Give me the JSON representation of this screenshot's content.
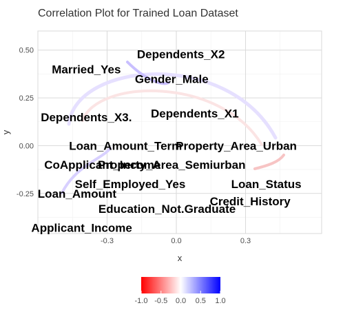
{
  "chart_data": {
    "type": "scatter",
    "title": "Correlation Plot for Trained Loan Dataset",
    "xlabel": "x",
    "ylabel": "y",
    "xlim": [
      -0.6,
      0.63
    ],
    "ylim": [
      -0.46,
      0.6
    ],
    "x_ticks": [
      -0.3,
      0.0,
      0.3
    ],
    "x_tick_labels": [
      "-0.3",
      "0.0",
      "0.3"
    ],
    "y_ticks": [
      0.5,
      0.25,
      0.0,
      -0.25
    ],
    "y_tick_labels": [
      "0.50",
      "0.25",
      "0.00",
      "-0.25"
    ],
    "grid": true,
    "points": [
      {
        "label": "Dependents_X2",
        "x": 0.02,
        "y": 0.48
      },
      {
        "label": "Married_Yes",
        "x": -0.39,
        "y": 0.4
      },
      {
        "label": "Gender_Male",
        "x": -0.02,
        "y": 0.35
      },
      {
        "label": "Dependents_X3.",
        "x": -0.39,
        "y": 0.15
      },
      {
        "label": "Dependents_X1",
        "x": 0.08,
        "y": 0.17
      },
      {
        "label": "Loan_Amount_Term",
        "x": -0.22,
        "y": 0.0
      },
      {
        "label": "Property_Area_Urban",
        "x": 0.26,
        "y": 0.0
      },
      {
        "label": "CoApplicant_Income",
        "x": -0.32,
        "y": -0.1
      },
      {
        "label": "Property_Area_Semiurban",
        "x": -0.02,
        "y": -0.1
      },
      {
        "label": "Self_Employed_Yes",
        "x": -0.2,
        "y": -0.2
      },
      {
        "label": "Loan_Status",
        "x": 0.39,
        "y": -0.2
      },
      {
        "label": "Loan_Amount",
        "x": -0.43,
        "y": -0.25
      },
      {
        "label": "Credit_History",
        "x": 0.32,
        "y": -0.29
      },
      {
        "label": "Education_Not.Graduate",
        "x": -0.04,
        "y": -0.33
      },
      {
        "label": "Applicant_Income",
        "x": -0.41,
        "y": -0.43
      }
    ],
    "legend": {
      "position": "bottom",
      "min": -1.0,
      "max": 1.0,
      "ticks": [
        -1.0,
        -0.5,
        0.0,
        0.5,
        1.0
      ],
      "tick_labels": [
        "-1.0",
        "-0.5",
        "0.0",
        "0.5",
        "1.0"
      ],
      "colors": [
        "#ff0000",
        "#ffffff",
        "#0000ff"
      ]
    }
  }
}
